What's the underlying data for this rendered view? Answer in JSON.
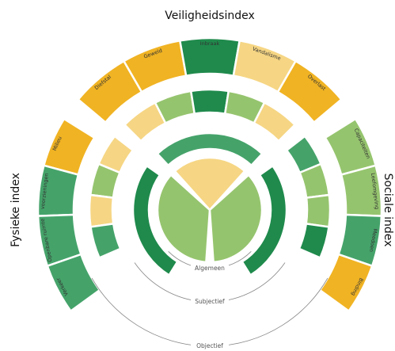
{
  "titles": {
    "top": "Veiligheidsindex",
    "left": "Fysieke index",
    "right": "Sociale index"
  },
  "outer": {
    "top": [
      "Diefstal",
      "Geweld",
      "Inbraak",
      "Vandalisme",
      "Overlast"
    ],
    "left": [
      "Milieu",
      "voorzieningen",
      "Openbare ruimte",
      "Verkeer"
    ],
    "right": [
      "Capaciteiten",
      "Leefomgeving",
      "Meedoen",
      "Binding"
    ]
  },
  "levels": [
    "Algemeen",
    "Subjectief",
    "Objectief"
  ]
}
